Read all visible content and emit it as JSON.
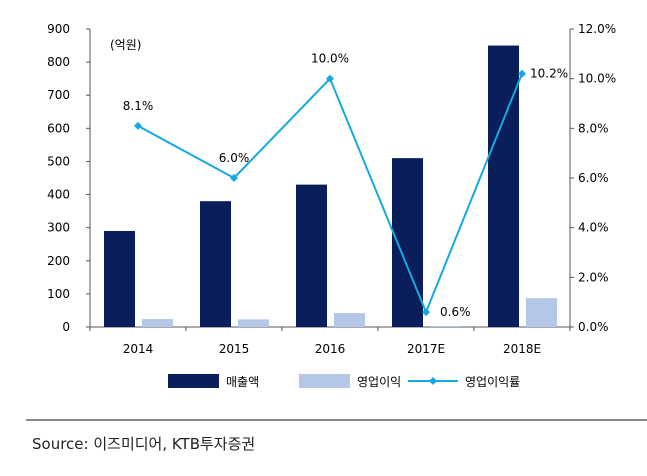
{
  "chart_data": {
    "type": "bar",
    "unit_label": "(억원)",
    "categories": [
      "2014",
      "2015",
      "2016",
      "2017E",
      "2018E"
    ],
    "series": [
      {
        "name": "매출액",
        "kind": "bar",
        "axis": "left",
        "color": "#0a1e5a",
        "values": [
          290,
          380,
          430,
          510,
          850
        ]
      },
      {
        "name": "영업이익",
        "kind": "bar",
        "axis": "left",
        "color": "#b4c7e7",
        "values": [
          24,
          23,
          42,
          3,
          87
        ]
      },
      {
        "name": "영업이익률",
        "kind": "line",
        "axis": "right",
        "color": "#16a8e0",
        "values": [
          8.1,
          6.0,
          10.0,
          0.6,
          10.2
        ],
        "labels": [
          "8.1%",
          "6.0%",
          "10.0%",
          "0.6%",
          "10.2%"
        ]
      }
    ],
    "y_left": {
      "min": 0,
      "max": 900,
      "ticks": [
        "0",
        "100",
        "200",
        "300",
        "400",
        "500",
        "600",
        "700",
        "800",
        "900"
      ]
    },
    "y_right": {
      "min": 0,
      "max": 12,
      "ticks": [
        "0.0%",
        "2.0%",
        "4.0%",
        "6.0%",
        "8.0%",
        "10.0%",
        "12.0%"
      ]
    },
    "grid": false,
    "legend_position": "bottom"
  },
  "footer": {
    "source": "Source: 이즈미디어, KTB투자증권"
  }
}
